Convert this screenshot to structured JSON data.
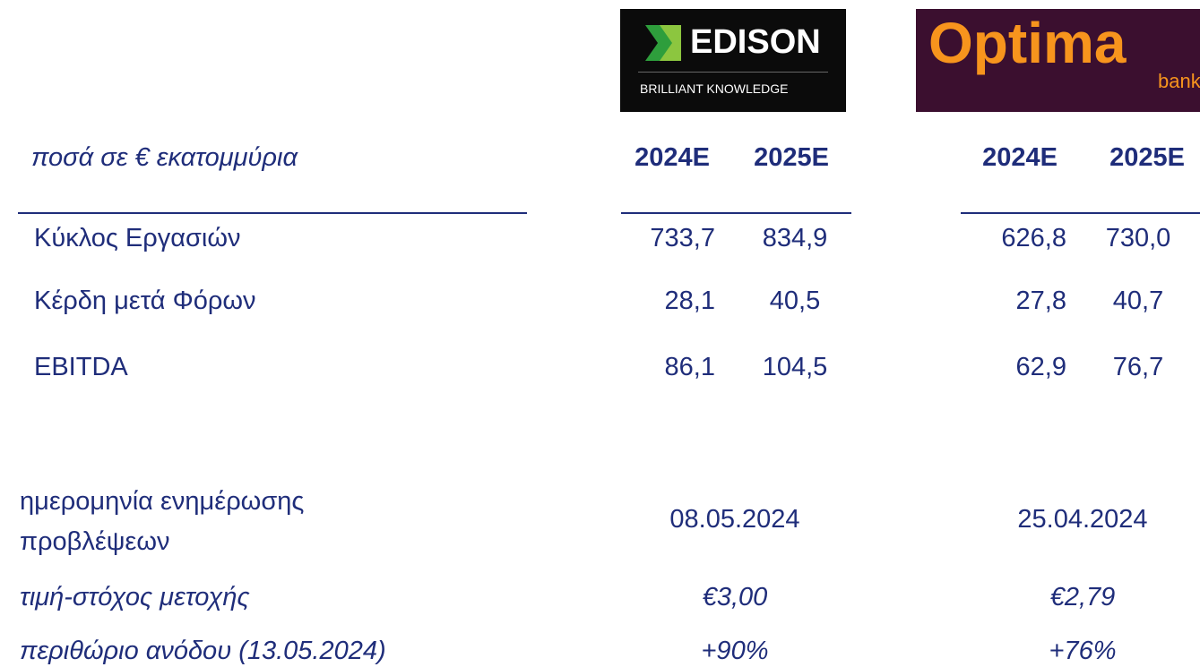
{
  "logos": {
    "edison": {
      "name": "EDISON",
      "tagline": "BRILLIANT KNOWLEDGE"
    },
    "optima": {
      "name": "Optima",
      "tagline": "bank"
    }
  },
  "table": {
    "unit_label": "ποσά σε € εκατομμύρια",
    "columns": [
      "2024E",
      "2025E",
      "2024E",
      "2025E"
    ],
    "rows": [
      {
        "label": "Κύκλος Εργασιών",
        "values": [
          "733,7",
          "834,9",
          "626,8",
          "730,0"
        ]
      },
      {
        "label": "Κέρδη μετά Φόρων",
        "values": [
          "28,1",
          "40,5",
          "27,8",
          "40,7"
        ]
      },
      {
        "label": "EBITDA",
        "values": [
          "86,1",
          "104,5",
          "62,9",
          "76,7"
        ]
      }
    ]
  },
  "details": [
    {
      "label_lines": [
        "ημερομηνία ενημέρωσης",
        "προβλέψεων"
      ],
      "values": [
        "08.05.2024",
        "25.04.2024"
      ]
    },
    {
      "label": "τιμή-στόχος μετοχής",
      "values": [
        "€3,00",
        "€2,79"
      ]
    },
    {
      "label": "περιθώριο ανόδου (13.05.2024)",
      "values": [
        "+90%",
        "+76%"
      ]
    }
  ]
}
